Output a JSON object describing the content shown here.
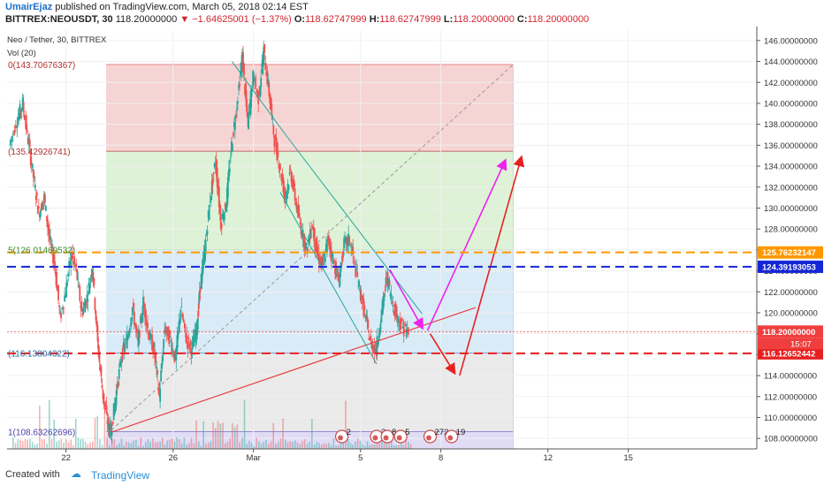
{
  "header": {
    "author": "UmairEjaz",
    "published": "published on TradingView.com, March 05, 2018 02:14 EST",
    "symbol": "BITTREX:NEOUSDT, 30",
    "last": "118.20000000",
    "change": "▼ −1.64625001 (−1.37%)",
    "o_label": "O:",
    "o_value": "118.62747999",
    "h_label": "H:",
    "h_value": "118.62747999",
    "l_label": "L:",
    "l_value": "118.20000000",
    "c_label": "C:",
    "c_value": "118.20000000"
  },
  "legend": {
    "title": "Neo / Tether, 30, BITTREX",
    "vol": "Vol (20)"
  },
  "footer": {
    "created": "Created with",
    "brand": "TradingView"
  },
  "chart_data": {
    "type": "line",
    "title": "Neo / Tether, 30, BITTREX",
    "ylim": [
      107,
      147
    ],
    "y_ticks": [
      "146.00000000",
      "144.00000000",
      "142.00000000",
      "140.00000000",
      "138.00000000",
      "136.00000000",
      "134.00000000",
      "132.00000000",
      "130.00000000",
      "128.00000000",
      "126.00000000",
      "124.00000000",
      "122.00000000",
      "120.00000000",
      "118.00000000",
      "116.00000000",
      "114.00000000",
      "112.00000000",
      "110.00000000",
      "108.00000000"
    ],
    "y_tick_values": [
      146,
      144,
      142,
      140,
      138,
      136,
      134,
      132,
      130,
      128,
      126,
      124,
      122,
      120,
      118,
      116,
      114,
      112,
      110,
      108
    ],
    "x_ticks": [
      "22",
      "26",
      "Mar",
      "5",
      "8",
      "12",
      "15"
    ],
    "x_tick_values": [
      22,
      26,
      29,
      33,
      36,
      40,
      43
    ],
    "xlim": [
      19.8,
      47.8
    ],
    "price_path": [
      [
        19.9,
        136.0
      ],
      [
        20.2,
        138.5
      ],
      [
        20.4,
        140.0
      ],
      [
        20.6,
        136.5
      ],
      [
        20.8,
        133.0
      ],
      [
        21.0,
        129.5
      ],
      [
        21.2,
        131.0
      ],
      [
        21.4,
        127.0
      ],
      [
        21.6,
        124.5
      ],
      [
        21.8,
        119.5
      ],
      [
        22.0,
        122.0
      ],
      [
        22.2,
        125.5
      ],
      [
        22.4,
        124.0
      ],
      [
        22.6,
        120.0
      ],
      [
        22.8,
        121.5
      ],
      [
        23.0,
        124.5
      ],
      [
        23.2,
        117.0
      ],
      [
        23.4,
        112.0
      ],
      [
        23.6,
        109.0
      ],
      [
        23.7,
        108.8
      ],
      [
        23.9,
        112.5
      ],
      [
        24.1,
        116.0
      ],
      [
        24.3,
        117.5
      ],
      [
        24.5,
        120.5
      ],
      [
        24.7,
        117.0
      ],
      [
        24.9,
        121.0
      ],
      [
        25.1,
        118.0
      ],
      [
        25.3,
        116.5
      ],
      [
        25.5,
        112.0
      ],
      [
        25.7,
        118.5
      ],
      [
        25.9,
        117.5
      ],
      [
        26.1,
        115.5
      ],
      [
        26.3,
        120.5
      ],
      [
        26.5,
        117.5
      ],
      [
        26.7,
        116.5
      ],
      [
        26.9,
        118.5
      ],
      [
        27.0,
        122.0
      ],
      [
        27.2,
        126.0
      ],
      [
        27.4,
        131.0
      ],
      [
        27.6,
        134.5
      ],
      [
        27.8,
        128.5
      ],
      [
        28.0,
        130.5
      ],
      [
        28.2,
        136.0
      ],
      [
        28.4,
        140.0
      ],
      [
        28.6,
        144.5
      ],
      [
        28.8,
        138.0
      ],
      [
        29.0,
        142.5
      ],
      [
        29.2,
        140.5
      ],
      [
        29.4,
        145.0
      ],
      [
        29.6,
        141.0
      ],
      [
        29.8,
        136.5
      ],
      [
        30.0,
        134.0
      ],
      [
        30.2,
        131.0
      ],
      [
        30.4,
        133.5
      ],
      [
        30.6,
        130.5
      ],
      [
        30.8,
        128.0
      ],
      [
        31.0,
        126.0
      ],
      [
        31.2,
        128.5
      ],
      [
        31.4,
        125.5
      ],
      [
        31.6,
        124.5
      ],
      [
        31.8,
        127.0
      ],
      [
        32.0,
        125.0
      ],
      [
        32.2,
        123.0
      ],
      [
        32.4,
        126.5
      ],
      [
        32.6,
        127.0
      ],
      [
        32.8,
        124.5
      ],
      [
        33.0,
        122.0
      ],
      [
        33.2,
        119.5
      ],
      [
        33.4,
        117.0
      ],
      [
        33.6,
        116.5
      ],
      [
        33.8,
        120.0
      ],
      [
        34.0,
        123.5
      ],
      [
        34.2,
        121.0
      ],
      [
        34.4,
        119.5
      ],
      [
        34.6,
        118.5
      ],
      [
        34.8,
        118.2
      ]
    ],
    "levels": [
      {
        "name": "orange-level",
        "value": 125.76232147,
        "label": "125.76232147",
        "color": "#ff9800"
      },
      {
        "name": "blue-level",
        "value": 124.39193053,
        "label": "124.39193053",
        "color": "#1526d6"
      },
      {
        "name": "last-price",
        "value": 118.2,
        "label": "118.20000000",
        "color": "#ef3e3e"
      },
      {
        "name": "red-level",
        "value": 116.12652442,
        "label": "116.12652442",
        "color": "#e81f1f"
      }
    ],
    "countdown": "15:07",
    "fib_labels": [
      "0(143.70676367)",
      "(135.42926741)",
      "5(126.01469532)",
      "(116.13804322)",
      "1(108.63262696)"
    ],
    "fib_values": [
      143.70676367,
      135.42926741,
      126.01469532,
      116.13804322,
      108.63262696
    ],
    "event_badges": [
      "2",
      "2",
      "8",
      "5",
      "272",
      "19"
    ],
    "colors": {
      "up": "#26a69a",
      "down": "#ef5350",
      "fib_red": "#f4cccc",
      "fib_green": "#d7f0d0",
      "fib_blue": "#d3e7f7",
      "fib_gray": "#e6e6e6",
      "fib_purple": "#dcd6f5",
      "magenta": "#ee22ee",
      "arrow_red": "#e82020"
    }
  }
}
